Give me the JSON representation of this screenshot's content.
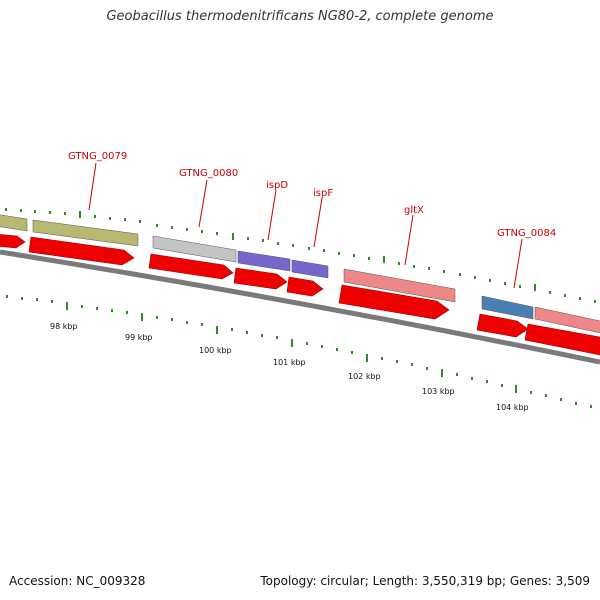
{
  "title": "Geobacillus thermodenitrificans NG80-2, complete genome",
  "footer": {
    "accession": "Accession: NC_009328",
    "stats": "Topology: circular; Length: 3,550,319 bp; Genes: 3,509"
  },
  "colors": {
    "forward_strand": "#ee0000",
    "backbone": "#7a7a7a",
    "tick": "#2e8b22",
    "label": "#cc0000",
    "gene_olive": "#b8b870",
    "gene_gray": "#c4c4c4",
    "gene_purple": "#7766cc",
    "gene_pink": "#ee8888",
    "gene_blue": "#4a7fb4"
  },
  "gene_labels": [
    {
      "text": "GTNG_0079"
    },
    {
      "text": "GTNG_0080"
    },
    {
      "text": "ispD"
    },
    {
      "text": "ispF"
    },
    {
      "text": "gltX"
    },
    {
      "text": "GTNG_0084"
    }
  ],
  "ruler": [
    {
      "label": "98 kbp"
    },
    {
      "label": "99 kbp"
    },
    {
      "label": "100 kbp"
    },
    {
      "label": "101 kbp"
    },
    {
      "label": "102 kbp"
    },
    {
      "label": "103 kbp"
    },
    {
      "label": "104 kbp"
    }
  ]
}
